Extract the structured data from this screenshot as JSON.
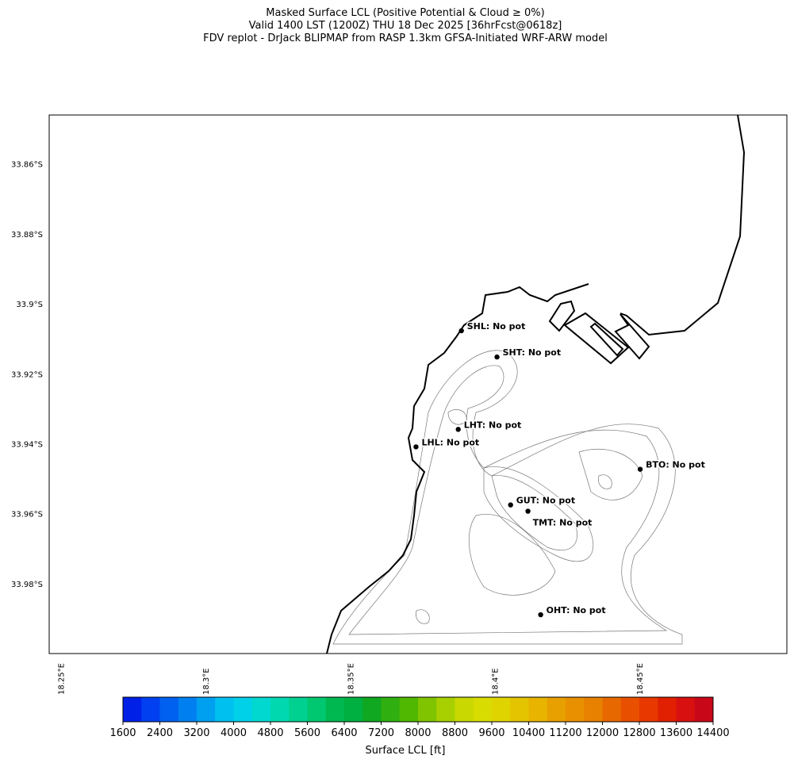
{
  "title": [
    "Masked Surface LCL (Positive Potential & Cloud ≥ 0%)",
    "Valid 1400 LST (1200Z) THU 18 Dec 2025 [36hrFcst@0618z]",
    "FDV replot - DrJack BLIPMAP from RASP 1.3km GFSA-Initiated WRF-ARW model"
  ],
  "map": {
    "lon_extent": [
      18.246,
      18.501
    ],
    "lat_extent": [
      -34.0,
      -33.846
    ],
    "lat_ticks": [
      {
        "value": -33.86,
        "label": "33.86°S"
      },
      {
        "value": -33.88,
        "label": "33.88°S"
      },
      {
        "value": -33.9,
        "label": "33.9°S"
      },
      {
        "value": -33.92,
        "label": "33.92°S"
      },
      {
        "value": -33.94,
        "label": "33.94°S"
      },
      {
        "value": -33.96,
        "label": "33.96°S"
      },
      {
        "value": -33.98,
        "label": "33.98°S"
      }
    ],
    "lon_ticks": [
      {
        "value": 18.25,
        "label": "18.25°E"
      },
      {
        "value": 18.3,
        "label": "18.3°E"
      },
      {
        "value": 18.35,
        "label": "18.35°E"
      },
      {
        "value": 18.4,
        "label": "18.4°E"
      },
      {
        "value": 18.45,
        "label": "18.45°E"
      }
    ],
    "stations": [
      {
        "label": "SHL: No pot",
        "lon": 18.3885,
        "lat": -33.9077
      },
      {
        "label": "SHT: No pot",
        "lon": 18.4008,
        "lat": -33.9152
      },
      {
        "label": "LHT: No pot",
        "lon": 18.3874,
        "lat": -33.9359
      },
      {
        "label": "LHL: No pot",
        "lon": 18.3728,
        "lat": -33.9409
      },
      {
        "label": "BTO: No pot",
        "lon": 18.4503,
        "lat": -33.9473
      },
      {
        "label": "GUT: No pot",
        "lon": 18.4055,
        "lat": -33.9575
      },
      {
        "label": "TMT: No pot",
        "lon": 18.4115,
        "lat": -33.9593
      },
      {
        "label": "OHT: No pot",
        "lon": 18.4159,
        "lat": -33.9889
      }
    ]
  },
  "colorbar": {
    "label": "Surface LCL [ft]",
    "range": [
      1600,
      14400
    ],
    "ticks": [
      1600,
      2400,
      3200,
      4000,
      4800,
      5600,
      6400,
      7200,
      8000,
      8800,
      9600,
      10400,
      11200,
      12000,
      12800,
      13600,
      14400
    ],
    "colors": [
      "#0020e8",
      "#0040f0",
      "#0060f0",
      "#0080f0",
      "#00a0f0",
      "#00c0f0",
      "#00d0e8",
      "#00d8d0",
      "#00d8b0",
      "#00d090",
      "#00c870",
      "#00b850",
      "#00b040",
      "#10a820",
      "#30b010",
      "#50b800",
      "#80c400",
      "#a8d000",
      "#c8d800",
      "#d8dc00",
      "#e0d400",
      "#e4c400",
      "#e8b400",
      "#e8a000",
      "#e89000",
      "#e88000",
      "#e86800",
      "#e85000",
      "#e83800",
      "#e02000",
      "#d81010",
      "#c80818"
    ]
  }
}
